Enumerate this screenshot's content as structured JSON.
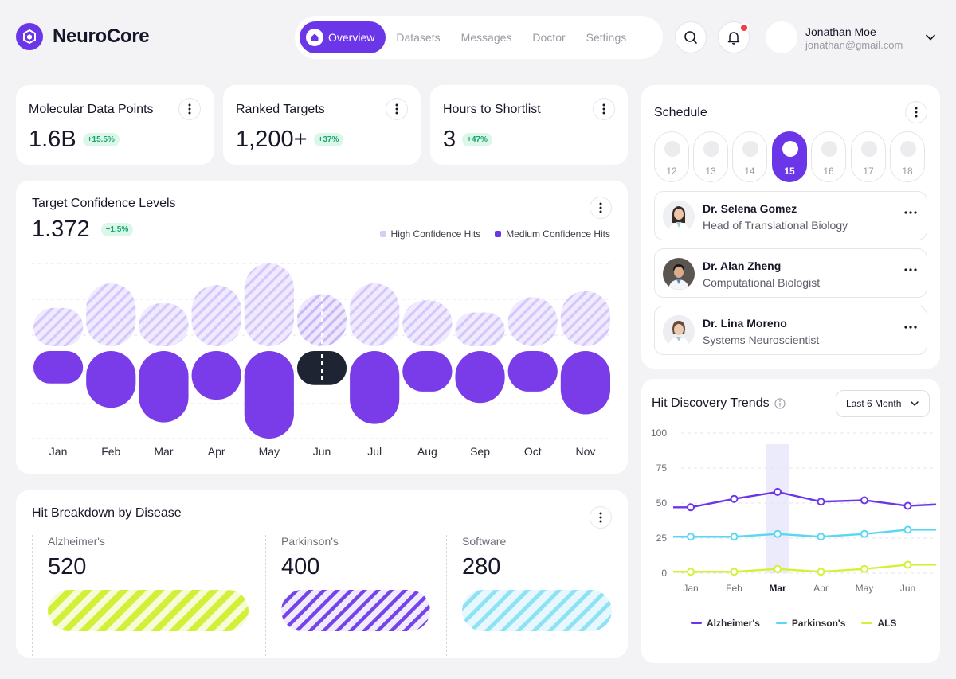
{
  "header": {
    "brand": "NeuroCore",
    "nav": [
      {
        "label": "Overview",
        "active": true
      },
      {
        "label": "Datasets"
      },
      {
        "label": "Messages"
      },
      {
        "label": "Doctor"
      },
      {
        "label": "Settings"
      }
    ],
    "user": {
      "name": "Jonathan Moe",
      "email": "jonathan@gmail.com"
    }
  },
  "stats": [
    {
      "label": "Molecular Data Points",
      "value": "1.6B",
      "change": "+15.5%"
    },
    {
      "label": "Ranked Targets",
      "value": "1,200+",
      "change": "+37%"
    },
    {
      "label": "Hours to Shortlist",
      "value": "3",
      "change": "+47%"
    }
  ],
  "confidence": {
    "title": "Target Confidence Levels",
    "value": "1.372",
    "change": "+1.5%"
  },
  "breakdown": {
    "title": "Hit Breakdown by Disease",
    "items": [
      {
        "label": "Alzheimer's",
        "value": "520"
      },
      {
        "label": "Parkinson's",
        "value": "400"
      },
      {
        "label": "Software",
        "value": "280"
      }
    ]
  },
  "schedule": {
    "title": "Schedule",
    "days": [
      "12",
      "13",
      "14",
      "15",
      "16",
      "17",
      "18"
    ],
    "active_day": "15",
    "doctors": [
      {
        "name": "Dr. Selena Gomez",
        "role": "Head of Translational Biology"
      },
      {
        "name": "Dr. Alan Zheng",
        "role": "Computational Biologist"
      },
      {
        "name": "Dr. Lina Moreno",
        "role": "Systems Neuroscientist"
      }
    ]
  },
  "trends": {
    "title": "Hit Discovery Trends",
    "period": "Last 6 Month"
  },
  "colors": {
    "accent": "#6b35e8",
    "light_purple": "#d9ccfb",
    "alzheimers": "#6b35e8",
    "parkinsons": "#5ad7f2",
    "als": "#d6f03a"
  },
  "chart_data": [
    {
      "type": "bar",
      "categories": [
        "Jan",
        "Feb",
        "Mar",
        "Apr",
        "May",
        "Jun",
        "Jul",
        "Aug",
        "Sep",
        "Oct",
        "Nov"
      ],
      "series": [
        {
          "name": "High Confidence Hits",
          "values": [
            50,
            82,
            56,
            80,
            108,
            68,
            82,
            60,
            44,
            64,
            72
          ]
        },
        {
          "name": "Medium Confidence Hits",
          "values": [
            40,
            70,
            88,
            60,
            108,
            42,
            90,
            50,
            64,
            50,
            78
          ]
        }
      ],
      "highlight": "Jun"
    },
    {
      "type": "line",
      "categories": [
        "Jan",
        "Feb",
        "Mar",
        "Apr",
        "May",
        "Jun"
      ],
      "ylim": [
        0,
        100
      ],
      "yticks": [
        0,
        25,
        50,
        75,
        100
      ],
      "series": [
        {
          "name": "Alzheimer's",
          "values": [
            47,
            53,
            58,
            51,
            52,
            48
          ]
        },
        {
          "name": "Parkinson's",
          "values": [
            26,
            26,
            28,
            26,
            28,
            31
          ]
        },
        {
          "name": "ALS",
          "values": [
            1,
            1,
            3,
            1,
            3,
            6
          ]
        }
      ],
      "highlight": "Mar"
    }
  ]
}
